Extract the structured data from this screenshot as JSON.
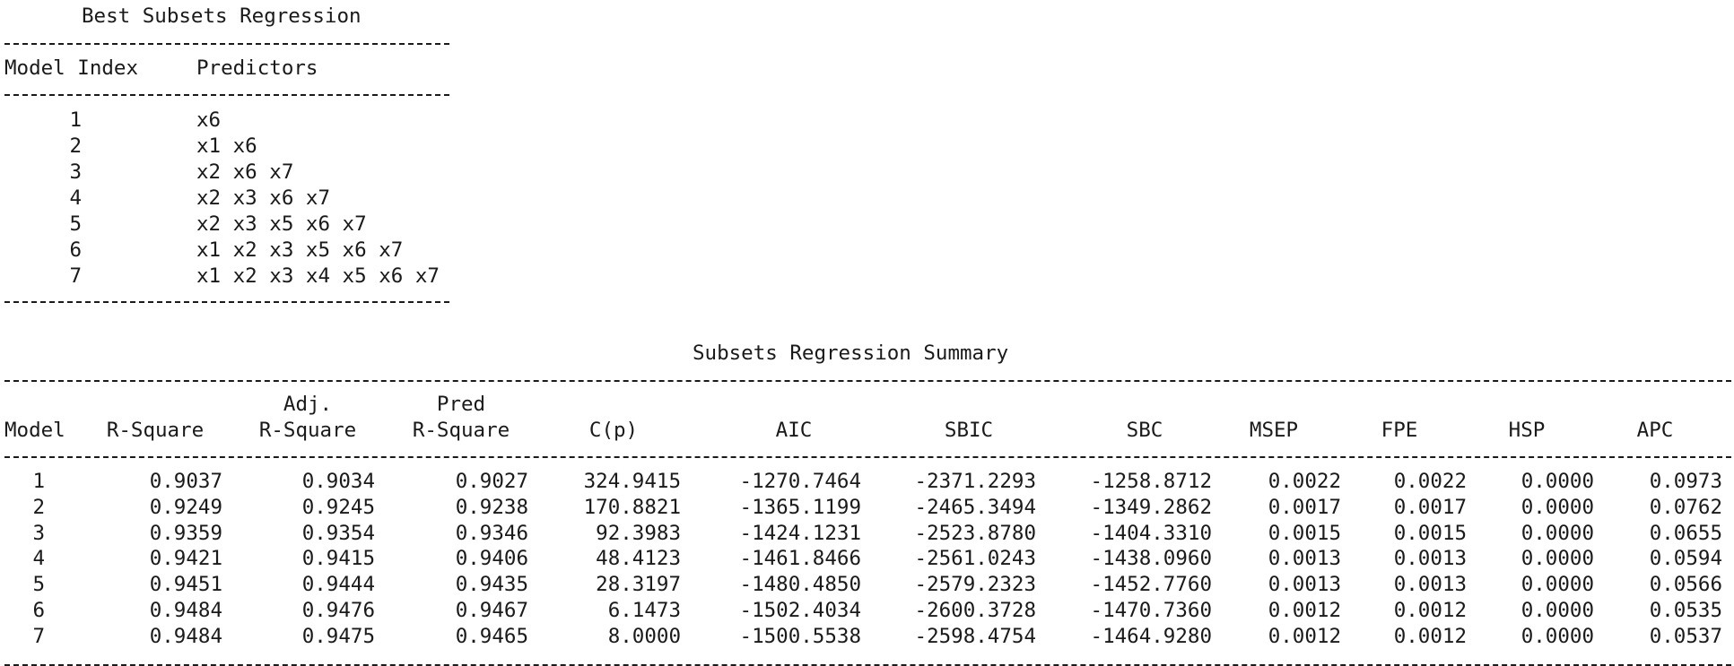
{
  "best_subsets": {
    "title": "Best Subsets Regression",
    "headers": [
      "Model Index",
      "Predictors"
    ],
    "rows": [
      {
        "index": "1",
        "predictors": "x6"
      },
      {
        "index": "2",
        "predictors": "x1 x6"
      },
      {
        "index": "3",
        "predictors": "x2 x6 x7"
      },
      {
        "index": "4",
        "predictors": "x2 x3 x6 x7"
      },
      {
        "index": "5",
        "predictors": "x2 x3 x5 x6 x7"
      },
      {
        "index": "6",
        "predictors": "x1 x2 x3 x5 x6 x7"
      },
      {
        "index": "7",
        "predictors": "x1 x2 x3 x4 x5 x6 x7"
      }
    ]
  },
  "summary": {
    "title": "Subsets Regression Summary",
    "header_top": [
      "",
      "",
      "Adj.",
      "Pred",
      "",
      "",
      "",
      "",
      "",
      "",
      "",
      ""
    ],
    "headers": [
      "Model",
      "R-Square",
      "R-Square",
      "R-Square",
      "C(p)",
      "AIC",
      "SBIC",
      "SBC",
      "MSEP",
      "FPE",
      "HSP",
      "APC"
    ],
    "rows": [
      [
        "1",
        "0.9037",
        "0.9034",
        "0.9027",
        "324.9415",
        "-1270.7464",
        "-2371.2293",
        "-1258.8712",
        "0.0022",
        "0.0022",
        "0.0000",
        "0.0973"
      ],
      [
        "2",
        "0.9249",
        "0.9245",
        "0.9238",
        "170.8821",
        "-1365.1199",
        "-2465.3494",
        "-1349.2862",
        "0.0017",
        "0.0017",
        "0.0000",
        "0.0762"
      ],
      [
        "3",
        "0.9359",
        "0.9354",
        "0.9346",
        "92.3983",
        "-1424.1231",
        "-2523.8780",
        "-1404.3310",
        "0.0015",
        "0.0015",
        "0.0000",
        "0.0655"
      ],
      [
        "4",
        "0.9421",
        "0.9415",
        "0.9406",
        "48.4123",
        "-1461.8466",
        "-2561.0243",
        "-1438.0960",
        "0.0013",
        "0.0013",
        "0.0000",
        "0.0594"
      ],
      [
        "5",
        "0.9451",
        "0.9444",
        "0.9435",
        "28.3197",
        "-1480.4850",
        "-2579.2323",
        "-1452.7760",
        "0.0013",
        "0.0013",
        "0.0000",
        "0.0566"
      ],
      [
        "6",
        "0.9484",
        "0.9476",
        "0.9467",
        "6.1473",
        "-1502.4034",
        "-2600.3728",
        "-1470.7360",
        "0.0012",
        "0.0012",
        "0.0000",
        "0.0535"
      ],
      [
        "7",
        "0.9484",
        "0.9475",
        "0.9465",
        "8.0000",
        "-1500.5538",
        "-2598.4754",
        "-1464.9280",
        "0.0012",
        "0.0012",
        "0.0000",
        "0.0537"
      ]
    ]
  }
}
